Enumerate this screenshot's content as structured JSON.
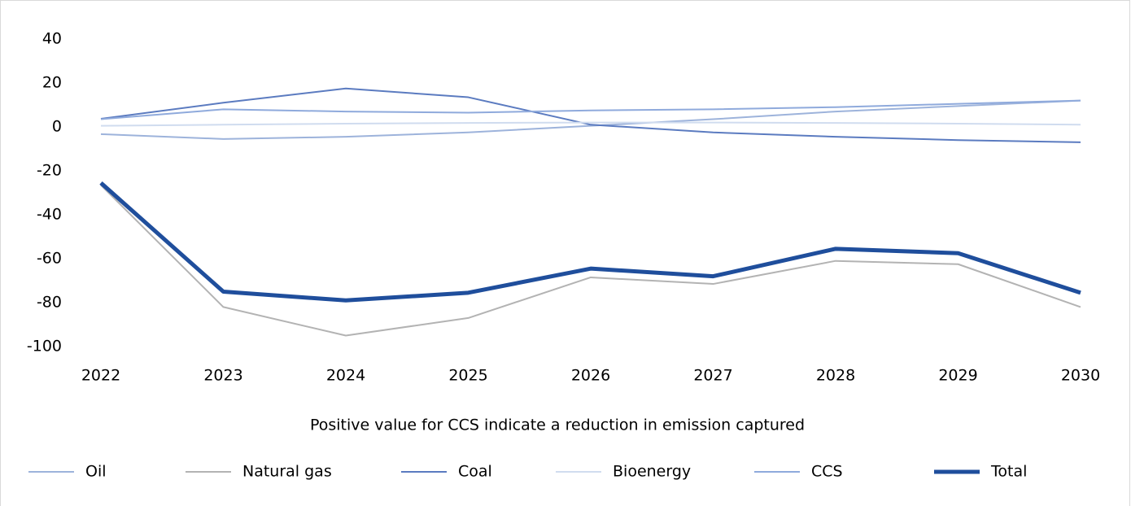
{
  "chart_data": {
    "type": "line",
    "xlabel": "Positive value for CCS indicate a reduction in emission captured",
    "categories": [
      "2022",
      "2023",
      "2024",
      "2025",
      "2026",
      "2027",
      "2028",
      "2029",
      "2030"
    ],
    "series": [
      {
        "name": "Oil",
        "color": "#9db3db",
        "width": 2,
        "values": [
          -3.3,
          -5.5,
          -4.5,
          -2.5,
          0.5,
          3.5,
          7,
          9.5,
          12
        ]
      },
      {
        "name": "Natural gas",
        "color": "#b3b3b3",
        "width": 2,
        "values": [
          -26.5,
          -82,
          -95,
          -87,
          -68.5,
          -71.5,
          -61,
          -62.5,
          -82
        ]
      },
      {
        "name": "Coal",
        "color": "#5b7bc0",
        "width": 2,
        "values": [
          3.7,
          11,
          17.5,
          13.5,
          1,
          -2.5,
          -4.5,
          -6,
          -7
        ]
      },
      {
        "name": "Bioenergy",
        "color": "#d0dcef",
        "width": 2,
        "values": [
          0.5,
          1,
          1.5,
          1.8,
          2,
          2,
          1.8,
          1.5,
          1
        ]
      },
      {
        "name": "CCS",
        "color": "#8faadc",
        "width": 2,
        "values": [
          3.5,
          8,
          7,
          6.5,
          7.5,
          8,
          9,
          10.5,
          12
        ]
      },
      {
        "name": "Total",
        "color": "#1f4e9c",
        "width": 5,
        "values": [
          -25.5,
          -75,
          -79,
          -75.5,
          -64.5,
          -68,
          -55.5,
          -57.5,
          -75.5
        ]
      }
    ],
    "ylim": [
      -100,
      40
    ],
    "yticks": [
      -100,
      -80,
      -60,
      -40,
      -20,
      0,
      20,
      40
    ],
    "legend": "bottom"
  }
}
